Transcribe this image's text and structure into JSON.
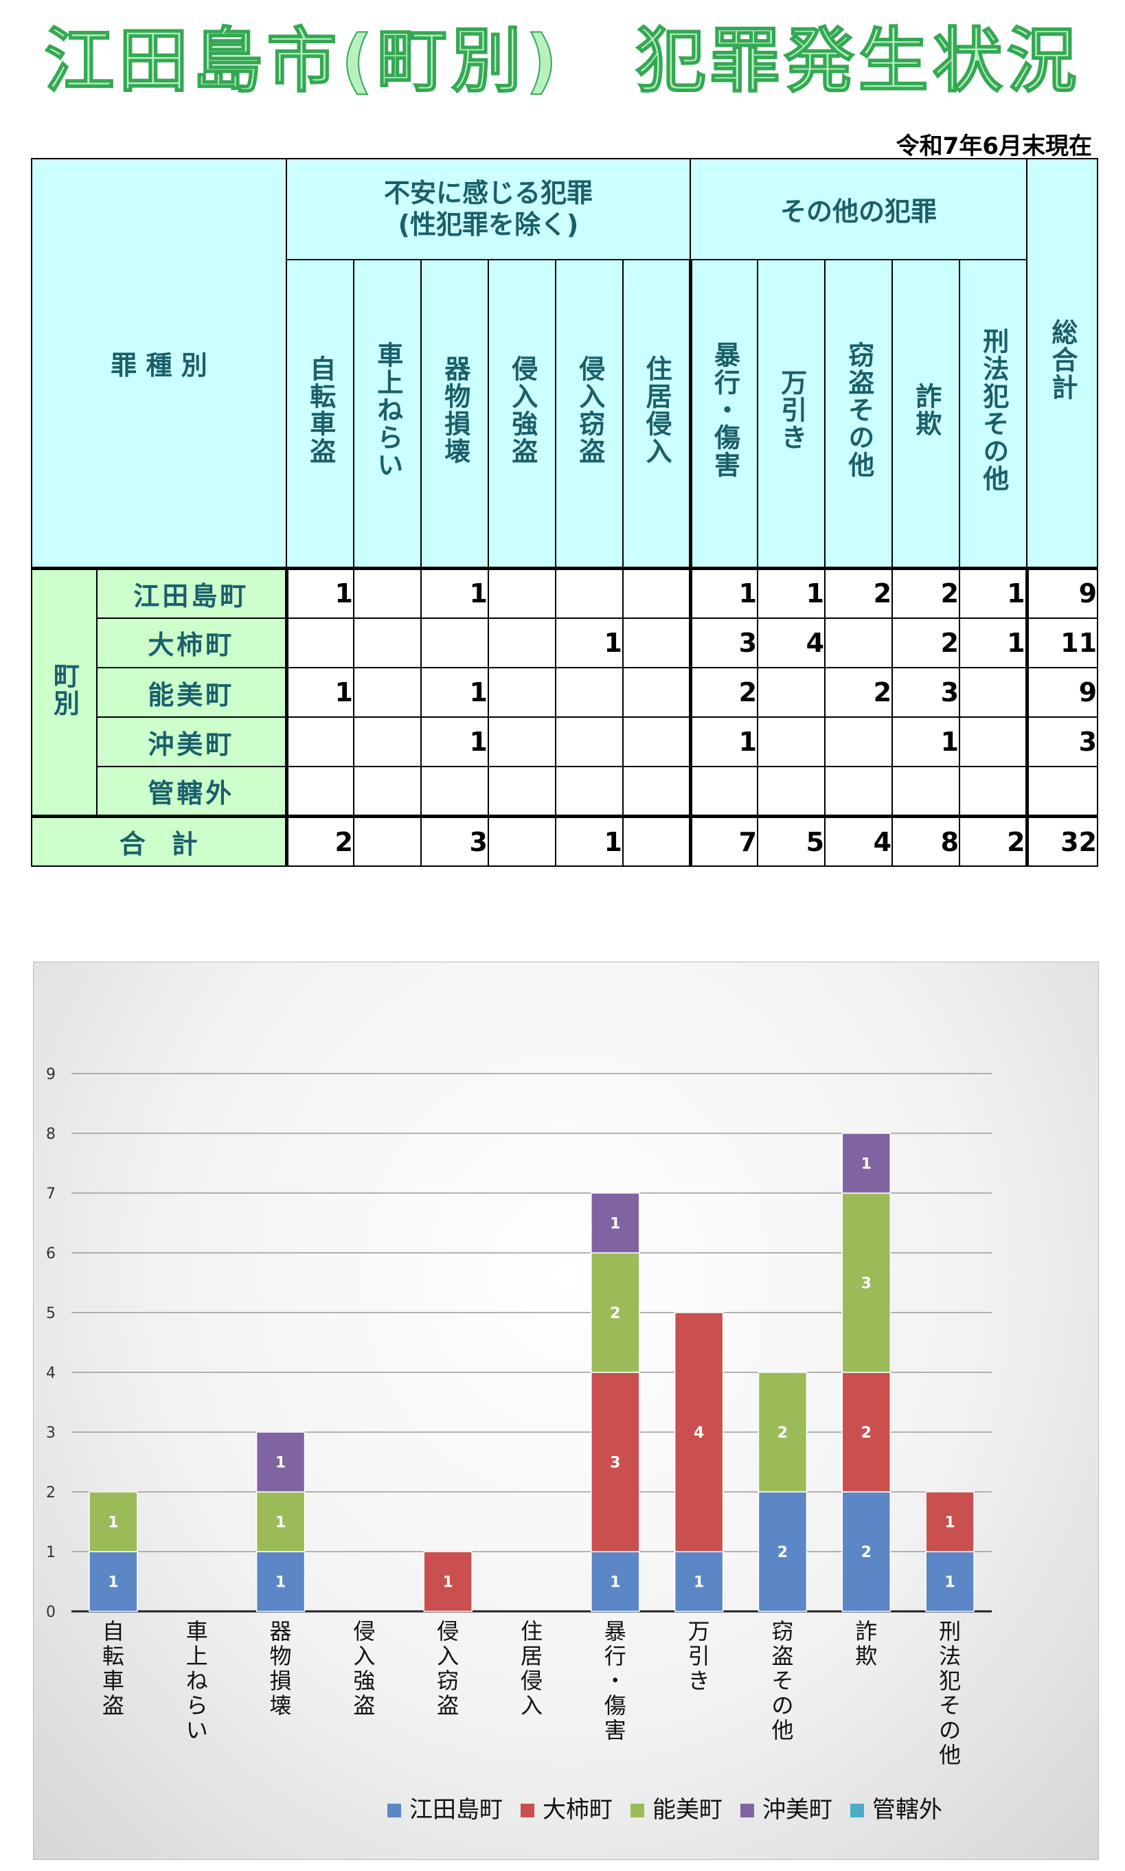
{
  "title": "江田島市(町別)　犯罪発生状況",
  "date_note": "令和7年6月末現在",
  "table": {
    "header_row_label": "罪 種 別",
    "group1": "不安に感じる犯罪\n(性犯罪を除く)",
    "group2": "その他の犯罪",
    "total_col": "総合計",
    "columns": [
      "自転車盗",
      "車上ねらい",
      "器物損壊",
      "侵入強盗",
      "侵入窃盗",
      "住居侵入",
      "暴行・傷害",
      "万引き",
      "窃盗その他",
      "詐欺",
      "刑法犯その他"
    ],
    "side_label": "町別",
    "rows": [
      {
        "name": "江田島町",
        "cells": [
          "1",
          "",
          "1",
          "",
          "",
          "",
          "1",
          "1",
          "2",
          "2",
          "1"
        ],
        "total": "9"
      },
      {
        "name": "大柿町",
        "cells": [
          "",
          "",
          "",
          "",
          "1",
          "",
          "3",
          "4",
          "",
          "2",
          "1"
        ],
        "total": "11"
      },
      {
        "name": "能美町",
        "cells": [
          "1",
          "",
          "1",
          "",
          "",
          "",
          "2",
          "",
          "2",
          "3",
          ""
        ],
        "total": "9"
      },
      {
        "name": "沖美町",
        "cells": [
          "",
          "",
          "1",
          "",
          "",
          "",
          "1",
          "",
          "",
          "1",
          ""
        ],
        "total": "3"
      },
      {
        "name": "管轄外",
        "cells": [
          "",
          "",
          "",
          "",
          "",
          "",
          "",
          "",
          "",
          "",
          ""
        ],
        "total": ""
      }
    ],
    "sum_row": {
      "name": "合　計",
      "cells": [
        "2",
        "",
        "3",
        "",
        "1",
        "",
        "7",
        "5",
        "4",
        "8",
        "2"
      ],
      "total": "32"
    }
  },
  "chart_data": {
    "type": "bar",
    "stacked": true,
    "categories": [
      "自転車盗",
      "車上ねらい",
      "器物損壊",
      "侵入強盗",
      "侵入窃盗",
      "住居侵入",
      "暴行・傷害",
      "万引き",
      "窃盗その他",
      "詐欺",
      "刑法犯その他"
    ],
    "series": [
      {
        "name": "江田島町",
        "color": "#5b87c6",
        "values": [
          1,
          0,
          1,
          0,
          0,
          0,
          1,
          1,
          2,
          2,
          1
        ]
      },
      {
        "name": "大柿町",
        "color": "#c9504f",
        "values": [
          0,
          0,
          0,
          0,
          1,
          0,
          3,
          4,
          0,
          2,
          1
        ]
      },
      {
        "name": "能美町",
        "color": "#9bbb59",
        "values": [
          1,
          0,
          1,
          0,
          0,
          0,
          2,
          0,
          2,
          3,
          0
        ]
      },
      {
        "name": "沖美町",
        "color": "#8064a2",
        "values": [
          0,
          0,
          1,
          0,
          0,
          0,
          1,
          0,
          0,
          1,
          0
        ]
      },
      {
        "name": "管轄外",
        "color": "#4bacc6",
        "values": [
          0,
          0,
          0,
          0,
          0,
          0,
          0,
          0,
          0,
          0,
          0
        ]
      }
    ],
    "yticks": [
      "0",
      "1",
      "2",
      "3",
      "4",
      "5",
      "6",
      "7",
      "8",
      "9"
    ],
    "ylim": [
      0,
      9
    ],
    "grid": true,
    "legend": "bottom-right"
  }
}
